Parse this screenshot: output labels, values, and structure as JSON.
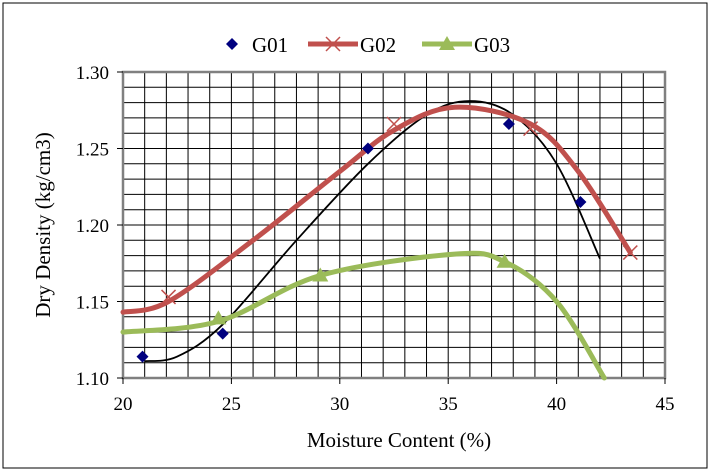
{
  "chart_data": {
    "type": "scatter",
    "title": "",
    "xlabel": "Moisture Content (%)",
    "ylabel": "Dry Density (kg/cm3)",
    "xlim": [
      20,
      45
    ],
    "ylim": [
      1.1,
      1.3
    ],
    "x_ticks": [
      "20",
      "25",
      "30",
      "35",
      "40",
      "45"
    ],
    "y_ticks": [
      "1.10",
      "1.15",
      "1.20",
      "1.25",
      "1.30"
    ],
    "grid": true,
    "legend_position": "top",
    "series": [
      {
        "name": "G01",
        "color": "#00007f",
        "marker": "diamond",
        "points": [
          [
            20.9,
            1.114
          ],
          [
            24.6,
            1.129
          ],
          [
            31.3,
            1.25
          ],
          [
            37.8,
            1.266
          ],
          [
            41.1,
            1.215
          ]
        ],
        "trendline": [
          [
            21,
            1.111
          ],
          [
            22.5,
            1.114
          ],
          [
            24.6,
            1.135
          ],
          [
            28,
            1.19
          ],
          [
            31.3,
            1.24
          ],
          [
            34,
            1.272
          ],
          [
            36,
            1.281
          ],
          [
            38,
            1.272
          ],
          [
            40,
            1.24
          ],
          [
            42,
            1.178
          ]
        ],
        "trend_color": "#000000"
      },
      {
        "name": "G02",
        "color": "#c0504d",
        "marker": "x",
        "points": [
          [
            22.1,
            1.153
          ],
          [
            32.5,
            1.266
          ],
          [
            38.8,
            1.263
          ],
          [
            43.4,
            1.182
          ]
        ],
        "line": [
          [
            20,
            1.143
          ],
          [
            22.1,
            1.15
          ],
          [
            26,
            1.19
          ],
          [
            30,
            1.235
          ],
          [
            32.5,
            1.262
          ],
          [
            35.3,
            1.277
          ],
          [
            38.8,
            1.266
          ],
          [
            41,
            1.235
          ],
          [
            43.4,
            1.182
          ]
        ]
      },
      {
        "name": "G03",
        "color": "#9bbb59",
        "marker": "triangle",
        "points": [
          [
            24.4,
            1.139
          ],
          [
            29.1,
            1.167
          ],
          [
            37.6,
            1.176
          ]
        ],
        "line": [
          [
            20,
            1.13
          ],
          [
            24.4,
            1.137
          ],
          [
            29.1,
            1.167
          ],
          [
            35.3,
            1.181
          ],
          [
            37.6,
            1.176
          ],
          [
            40,
            1.15
          ],
          [
            42.2,
            1.1
          ]
        ]
      }
    ]
  }
}
